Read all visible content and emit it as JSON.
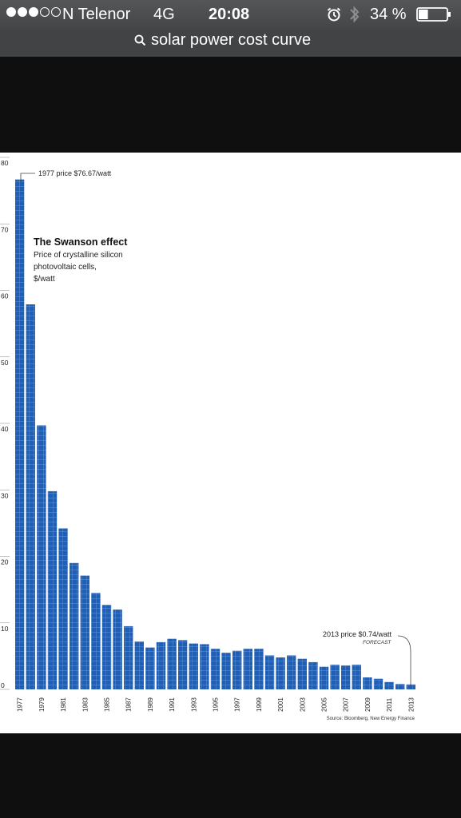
{
  "status_bar": {
    "signal_dots": [
      true,
      true,
      true,
      false,
      false
    ],
    "carrier": "N Telenor",
    "network": "4G",
    "time": "20:08",
    "battery": "34 %",
    "battery_level": 0.34,
    "icons": [
      "alarm-icon",
      "bluetooth-icon",
      "battery-icon"
    ]
  },
  "search": {
    "query": "solar power cost curve",
    "icon": "search-icon"
  },
  "colors": {
    "bar": "#1f5fb5",
    "bar_grid": "#8fb4e6",
    "status_bar": "#4d4e4f",
    "background": "#0f0f0f"
  },
  "chart_data": {
    "type": "bar",
    "title": "The Swanson effect",
    "subtitle": [
      "Price of crystalline silicon",
      "photovoltaic cells,",
      "$/watt"
    ],
    "annotations": {
      "first": "1977 price $76.67/watt",
      "last": "2013 price $0.74/watt",
      "forecast": "FORECAST"
    },
    "source": "Source: Bloomberg, New Energy Finance",
    "ylim": [
      0,
      80
    ],
    "y_ticks": [
      0,
      10,
      20,
      30,
      40,
      50,
      60,
      70,
      80
    ],
    "categories": [
      "1977",
      "1978",
      "1979",
      "1980",
      "1981",
      "1982",
      "1983",
      "1984",
      "1985",
      "1986",
      "1987",
      "1988",
      "1989",
      "1990",
      "1991",
      "1992",
      "1993",
      "1994",
      "1995",
      "1996",
      "1997",
      "1998",
      "1999",
      "2000",
      "2001",
      "2002",
      "2003",
      "2004",
      "2005",
      "2006",
      "2007",
      "2008",
      "2009",
      "2010",
      "2011",
      "2012",
      "2013"
    ],
    "x_tick_labels": [
      "1977",
      "1979",
      "1981",
      "1983",
      "1985",
      "1987",
      "1989",
      "1991",
      "1993",
      "1995",
      "1997",
      "1999",
      "2001",
      "2003",
      "2005",
      "2007",
      "2009",
      "2011",
      "2013"
    ],
    "values": [
      76.67,
      57.9,
      39.7,
      29.8,
      24.2,
      19.0,
      17.1,
      14.5,
      12.7,
      12.0,
      9.5,
      7.2,
      6.3,
      7.1,
      7.6,
      7.4,
      6.9,
      6.8,
      6.1,
      5.5,
      5.8,
      6.1,
      6.1,
      5.1,
      4.8,
      5.1,
      4.6,
      4.1,
      3.4,
      3.7,
      3.6,
      3.7,
      1.8,
      1.6,
      1.1,
      0.8,
      0.74
    ]
  }
}
